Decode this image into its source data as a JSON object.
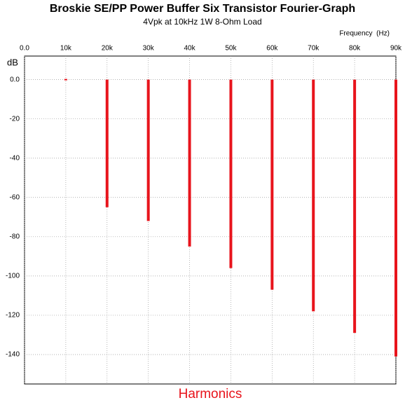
{
  "chart_data": {
    "type": "bar",
    "title": "Broskie SE/PP Power Buffer Six Transistor Fourier-Graph",
    "subtitle": "4Vpk at 10kHz 1W 8-Ohm Load",
    "x_label": "Frequency  (Hz)",
    "y_label": "dB",
    "annotation": "Harmonics",
    "x": [
      10000,
      20000,
      30000,
      40000,
      50000,
      60000,
      70000,
      80000,
      90000
    ],
    "values": [
      0,
      -65,
      -72,
      -85,
      -96,
      -107,
      -118,
      -129,
      -141
    ],
    "color": "#e8141c",
    "xlim": [
      0,
      90000
    ],
    "xticks": [
      {
        "value": 0,
        "label": "0.0"
      },
      {
        "value": 10000,
        "label": "10k"
      },
      {
        "value": 20000,
        "label": "20k"
      },
      {
        "value": 30000,
        "label": "30k"
      },
      {
        "value": 40000,
        "label": "40k"
      },
      {
        "value": 50000,
        "label": "50k"
      },
      {
        "value": 60000,
        "label": "60k"
      },
      {
        "value": 70000,
        "label": "70k"
      },
      {
        "value": 80000,
        "label": "80k"
      },
      {
        "value": 90000,
        "label": "90k"
      }
    ],
    "ylim": [
      -155,
      12
    ],
    "yticks": [
      {
        "value": 0,
        "label": "0.0"
      },
      -20,
      -40,
      -60,
      -80,
      -100,
      -120,
      -140
    ],
    "grid": true
  }
}
